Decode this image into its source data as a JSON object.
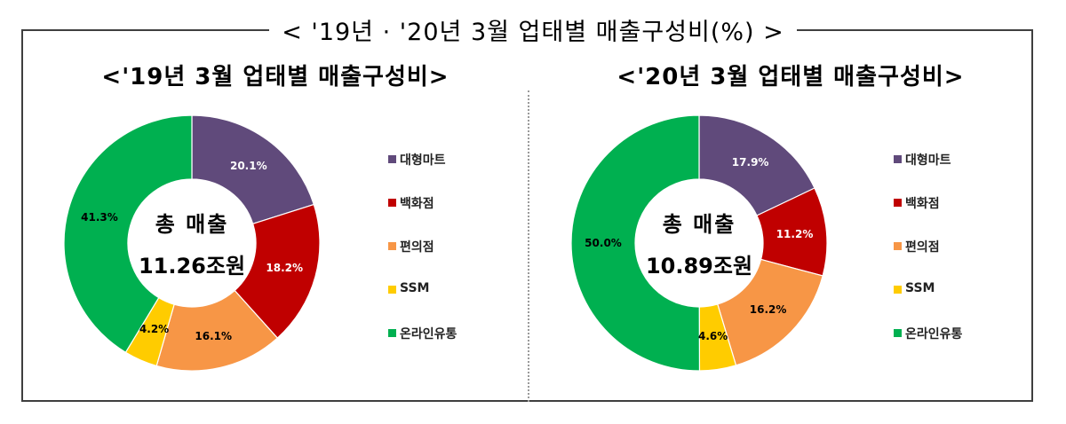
{
  "header": {
    "title": "< '19년 · '20년 3월 업태별 매출구성비(%) >"
  },
  "colors": {
    "대형마트": "#604a7b",
    "백화점": "#c00000",
    "편의점": "#f79646",
    "SSM": "#ffcc00",
    "온라인유통": "#00b050"
  },
  "legend": {
    "items": [
      {
        "label": "대형마트",
        "color": "#604a7b"
      },
      {
        "label": "백화점",
        "color": "#c00000"
      },
      {
        "label": "편의점",
        "color": "#f79646"
      },
      {
        "label": "SSM",
        "color": "#ffcc00"
      },
      {
        "label": "온라인유통",
        "color": "#00b050"
      }
    ]
  },
  "charts": {
    "left": {
      "title": "<'19년 3월 업태별 매출구성비>",
      "center_line1": "총 매출",
      "center_line2": "11.26조원",
      "labels": [
        "20.1%",
        "18.2%",
        "16.1%",
        "4.2%",
        "41.3%"
      ]
    },
    "right": {
      "title": "<'20년 3월 업태별 매출구성비>",
      "center_line1": "총 매출",
      "center_line2": "10.89조원",
      "labels": [
        "17.9%",
        "11.2%",
        "16.2%",
        "4.6%",
        "50.0%"
      ]
    }
  },
  "chart_data": [
    {
      "type": "pie",
      "subtype": "donut",
      "title": "<'19년 3월 업태별 매출구성비>",
      "center_text": [
        "총 매출",
        "11.26조원"
      ],
      "categories": [
        "대형마트",
        "백화점",
        "편의점",
        "SSM",
        "온라인유통"
      ],
      "values": [
        20.1,
        18.2,
        16.1,
        4.2,
        41.3
      ],
      "unit": "%",
      "colors": [
        "#604a7b",
        "#c00000",
        "#f79646",
        "#ffcc00",
        "#00b050"
      ],
      "legend_position": "right"
    },
    {
      "type": "pie",
      "subtype": "donut",
      "title": "<'20년 3월 업태별 매출구성비>",
      "center_text": [
        "총 매출",
        "10.89조원"
      ],
      "categories": [
        "대형마트",
        "백화점",
        "편의점",
        "SSM",
        "온라인유통"
      ],
      "values": [
        17.9,
        11.2,
        16.2,
        4.6,
        50.0
      ],
      "unit": "%",
      "colors": [
        "#604a7b",
        "#c00000",
        "#f79646",
        "#ffcc00",
        "#00b050"
      ],
      "legend_position": "right"
    }
  ]
}
